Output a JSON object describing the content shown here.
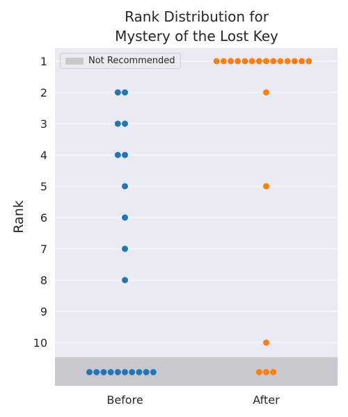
{
  "chart_data": {
    "type": "scatter",
    "subtype": "swarm",
    "title_lines": [
      "Rank Distribution for",
      "Mystery of the Lost Key"
    ],
    "xlabel": "",
    "ylabel": "Rank",
    "categories": [
      "Before",
      "After"
    ],
    "y_ticks": [
      "1",
      "2",
      "3",
      "4",
      "5",
      "6",
      "7",
      "8",
      "9",
      "10"
    ],
    "y_inverted": true,
    "grid": true,
    "legend": {
      "label": "Not Recommended",
      "placement": "top-left",
      "color": "#c9c8ce"
    },
    "series": [
      {
        "category": "Before",
        "color": "#1f77b4",
        "counts": {
          "1": 0,
          "2": 2,
          "3": 2,
          "4": 2,
          "5": 1,
          "6": 1,
          "7": 1,
          "8": 1,
          "9": 0,
          "10": 0,
          "Not Recommended": 10
        }
      },
      {
        "category": "After",
        "color": "#ff7f0e",
        "counts": {
          "1": 14,
          "2": 1,
          "3": 0,
          "4": 0,
          "5": 1,
          "6": 0,
          "7": 0,
          "8": 0,
          "9": 0,
          "10": 1,
          "Not Recommended": 3
        }
      }
    ],
    "background_color": "#eaeaf2",
    "grid_color": "#ffffff"
  }
}
